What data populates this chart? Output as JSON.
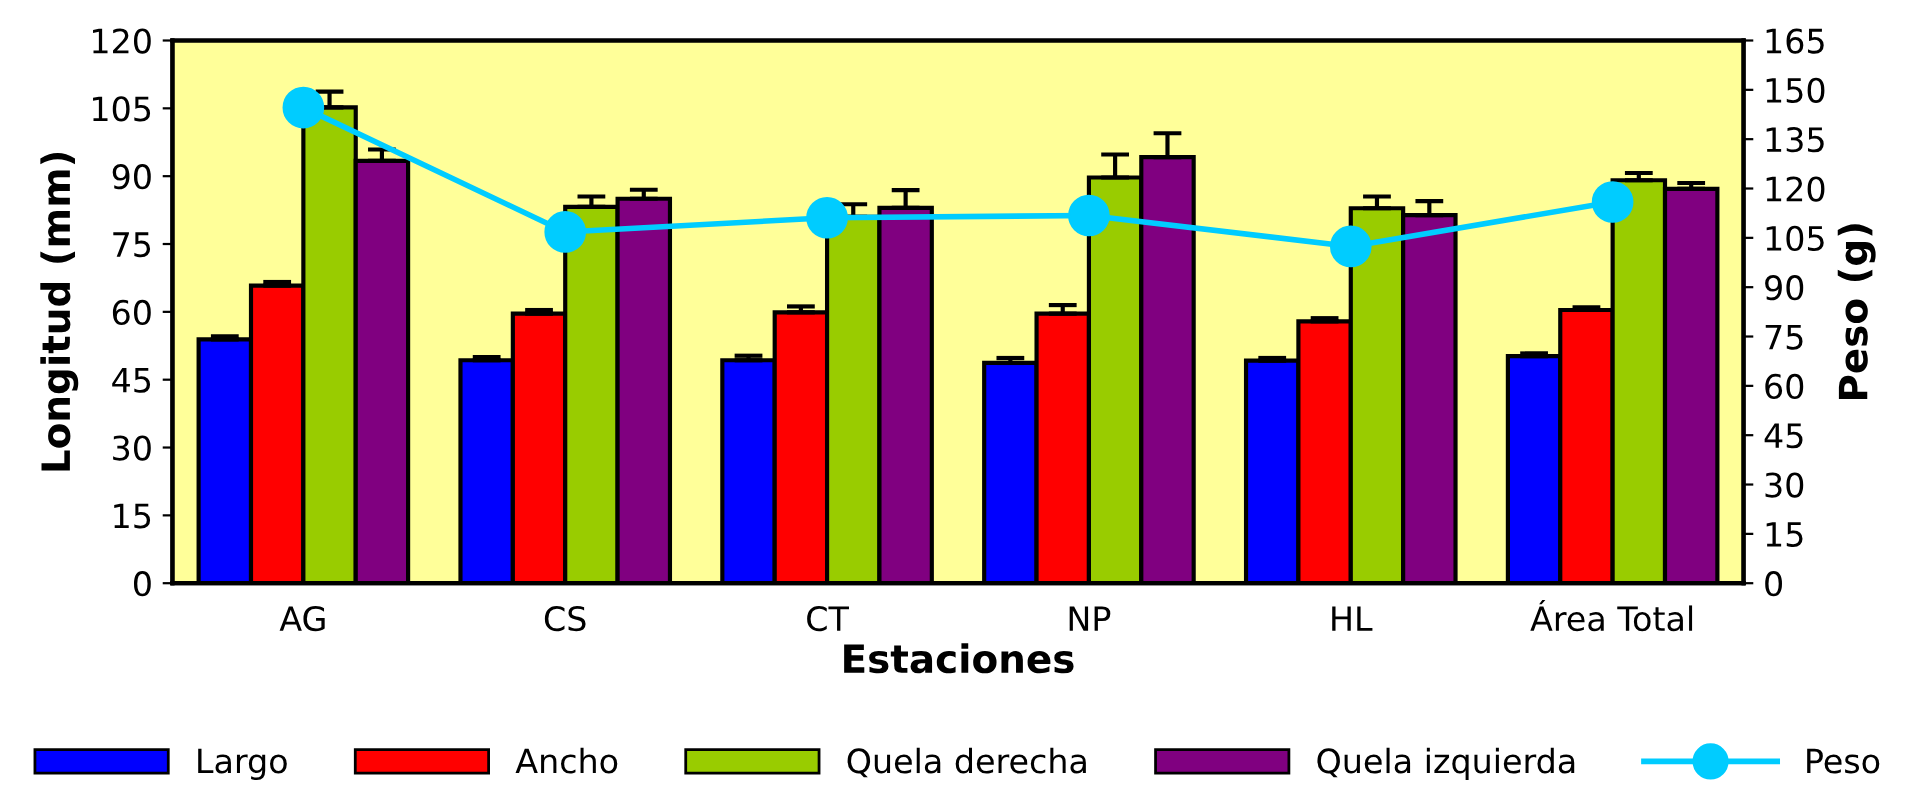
{
  "chart_data": {
    "type": "bar",
    "xlabel": "Estaciones",
    "ylabel": "Longitud (mm)",
    "y2label": "Peso (g)",
    "categories": [
      "AG",
      "CS",
      "CT",
      "NP",
      "HL",
      "Área Total"
    ],
    "series": [
      {
        "name": "Largo",
        "color": "#0000ff",
        "values": [
          53.9,
          49.3,
          49.3,
          48.7,
          49.2,
          50.2
        ],
        "errors": [
          [
            53.9,
            54.6
          ],
          [
            49.3,
            50.0
          ],
          [
            49.3,
            50.3
          ],
          [
            48.7,
            49.8
          ],
          [
            49.2,
            49.8
          ],
          [
            50.2,
            50.8
          ]
        ]
      },
      {
        "name": "Ancho",
        "color": "#ff0000",
        "values": [
          65.8,
          59.6,
          59.9,
          59.6,
          57.9,
          60.4
        ],
        "errors": [
          [
            65.8,
            66.6
          ],
          [
            59.6,
            60.4
          ],
          [
            59.9,
            61.2
          ],
          [
            59.6,
            61.5
          ],
          [
            57.9,
            58.6
          ],
          [
            60.4,
            61.0
          ]
        ]
      },
      {
        "name": "Quela derecha",
        "color": "#99cc00",
        "values": [
          105.2,
          83.2,
          81.0,
          89.7,
          82.9,
          89.1
        ],
        "errors": [
          [
            105.2,
            108.7
          ],
          [
            83.2,
            85.5
          ],
          [
            81.0,
            83.8
          ],
          [
            89.7,
            94.8
          ],
          [
            82.9,
            85.5
          ],
          [
            89.1,
            90.7
          ]
        ]
      },
      {
        "name": "Quela izquierda",
        "color": "#800080",
        "values": [
          93.4,
          85.0,
          83.0,
          94.2,
          81.4,
          87.2
        ],
        "errors": [
          [
            93.4,
            95.9
          ],
          [
            85.0,
            87.0
          ],
          [
            83.0,
            86.9
          ],
          [
            94.2,
            99.5
          ],
          [
            81.4,
            84.5
          ],
          [
            87.2,
            88.5
          ]
        ]
      },
      {
        "name": "Peso",
        "type": "line",
        "axis": "y2",
        "color": "#00ccff",
        "marker": "circle",
        "values": [
          144.6,
          106.8,
          111.1,
          111.8,
          102.4,
          115.9
        ]
      }
    ],
    "ylim": [
      0,
      120
    ],
    "yticks": [
      0,
      15,
      30,
      45,
      60,
      75,
      90,
      105,
      120
    ],
    "y2lim": [
      0,
      165
    ],
    "y2ticks": [
      0,
      15,
      30,
      45,
      60,
      75,
      90,
      105,
      120,
      135,
      150,
      165
    ],
    "grid": false,
    "legend": "bottom"
  }
}
